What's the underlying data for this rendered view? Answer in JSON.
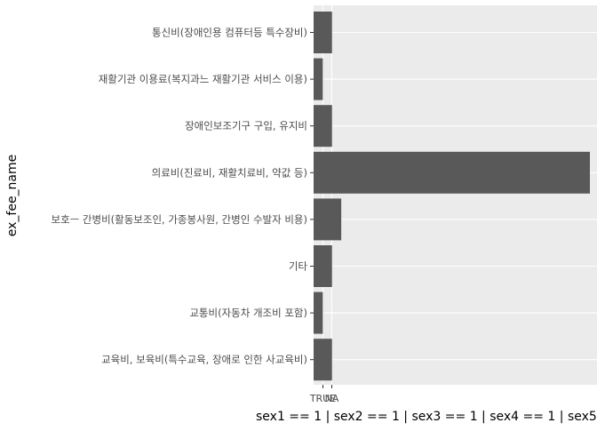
{
  "chart_data": {
    "type": "bar",
    "orientation": "horizontal",
    "ylabel": "ex_fee_name",
    "xlabel": "sex1 == 1 | sex2 == 1 | sex3 == 1 | sex4 == 1 | sex5 == 1 | s",
    "x_ticks": [
      "TRUE",
      "NA"
    ],
    "categories": [
      "통신비(장애인용 컴퓨터등 특수장비)",
      "재활기관 이용료(복지과느 재활기관 서비스 이용)",
      "장애인보조기구 구입, 유지비",
      "의료비(진료비, 재활치료비, 약값 등)",
      "보호ㅡ 간병비(활동보조인, 가종봉사원, 간병인 수발자 비용)",
      "기타",
      "교통비(자동차 개조비 포함)",
      "교육비, 보육비(특수교육, 장애로 인한 사교육비)"
    ],
    "values": [
      2,
      1,
      2,
      30,
      3,
      2,
      1,
      2
    ],
    "xlim": [
      0,
      30
    ],
    "grid": true,
    "colors": {
      "bar": "#595959",
      "panel": "#ebebeb",
      "grid": "#ffffff",
      "text": "#4d4d4d",
      "title": "#000000"
    }
  }
}
